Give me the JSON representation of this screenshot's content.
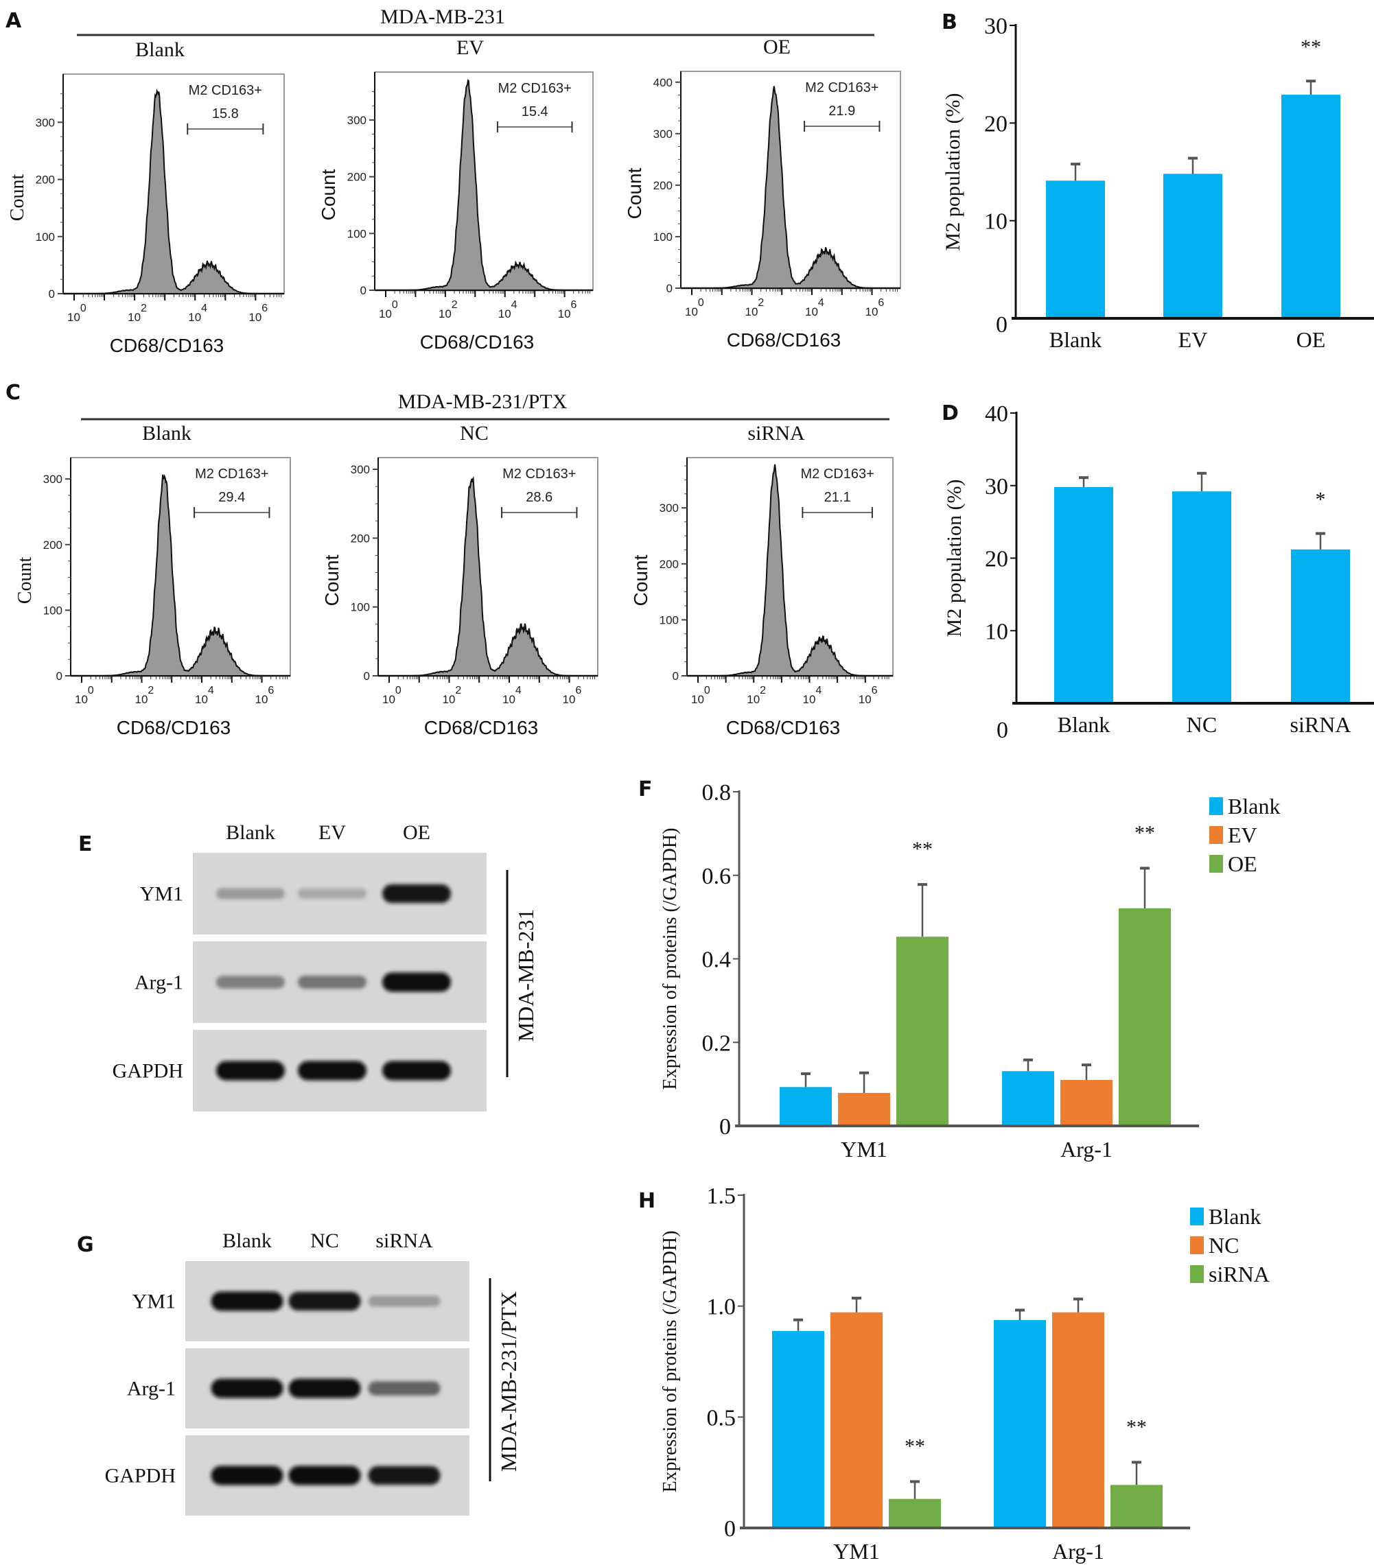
{
  "figure": {
    "panel_letters": [
      "A",
      "B",
      "C",
      "D",
      "E",
      "F",
      "G",
      "H"
    ]
  },
  "flow_groups": [
    {
      "letter": "A",
      "cell_line": "MDA-MB-231",
      "histograms": [
        {
          "title": "Blank",
          "gate_label": "M2 CD163+",
          "gate_value": "15.8",
          "y_ticks": [
            0,
            100,
            200,
            300
          ],
          "y_max": 370,
          "peak1": 355,
          "peak2": 52
        },
        {
          "title": "EV",
          "gate_label": "M2 CD163+",
          "gate_value": "15.4",
          "y_ticks": [
            0,
            100,
            200,
            300
          ],
          "y_max": 370,
          "peak1": 365,
          "peak2": 45
        },
        {
          "title": "OE",
          "gate_label": "M2 CD163+",
          "gate_value": "21.9",
          "y_ticks": [
            0,
            100,
            200,
            300,
            400
          ],
          "y_max": 405,
          "peak1": 385,
          "peak2": 72
        }
      ],
      "xlabel": "CD68/CD163",
      "ylabel": "Count",
      "x_ticks": [
        "10^0",
        "10^2",
        "10^4",
        "10^6"
      ]
    },
    {
      "letter": "C",
      "cell_line": "MDA-MB-231/PTX",
      "histograms": [
        {
          "title": "Blank",
          "gate_label": "M2 CD163+",
          "gate_value": "29.4",
          "y_ticks": [
            0,
            100,
            200,
            300
          ],
          "y_max": 320,
          "peak1": 305,
          "peak2": 68
        },
        {
          "title": "NC",
          "gate_label": "M2 CD163+",
          "gate_value": "28.6",
          "y_ticks": [
            0,
            100,
            200,
            300
          ],
          "y_max": 305,
          "peak1": 285,
          "peak2": 70
        },
        {
          "title": "siRNA",
          "gate_label": "M2 CD163+",
          "gate_value": "21.1",
          "y_ticks": [
            0,
            100,
            200,
            300
          ],
          "y_max": 375,
          "peak1": 370,
          "peak2": 65
        }
      ],
      "xlabel": "CD68/CD163",
      "ylabel": "Count",
      "x_ticks": [
        "10^0",
        "10^2",
        "10^4",
        "10^6"
      ]
    }
  ],
  "blots": [
    {
      "letter": "E",
      "lanes": [
        "Blank",
        "EV",
        "OE"
      ],
      "rows": [
        {
          "label": "YM1",
          "intensity": [
            0.25,
            0.18,
            0.95
          ]
        },
        {
          "label": "Arg-1",
          "intensity": [
            0.4,
            0.45,
            1.0
          ]
        },
        {
          "label": "GAPDH",
          "intensity": [
            1.0,
            1.0,
            1.0
          ]
        }
      ],
      "side_label": "MDA-MB-231"
    },
    {
      "letter": "G",
      "lanes": [
        "Blank",
        "NC",
        "siRNA"
      ],
      "rows": [
        {
          "label": "YM1",
          "intensity": [
            1.0,
            0.95,
            0.25
          ]
        },
        {
          "label": "Arg-1",
          "intensity": [
            1.0,
            1.0,
            0.55
          ]
        },
        {
          "label": "GAPDH",
          "intensity": [
            1.0,
            1.0,
            0.95
          ]
        }
      ],
      "side_label": "MDA-MB-231/PTX"
    }
  ],
  "chart_data": [
    {
      "panel": "B",
      "type": "bar",
      "title": "",
      "xlabel": "",
      "ylabel": "M2 population (%)",
      "categories": [
        "Blank",
        "EV",
        "OE"
      ],
      "values": [
        14.1,
        14.8,
        22.9
      ],
      "errors": [
        1.7,
        1.6,
        1.4
      ],
      "significance": [
        "",
        "",
        "**"
      ],
      "ylim": [
        0,
        30
      ],
      "y_ticks": [
        0,
        10,
        20,
        30
      ],
      "color": "#00b0ef",
      "grid": false
    },
    {
      "panel": "D",
      "type": "bar",
      "title": "",
      "xlabel": "",
      "ylabel": "M2 population (%)",
      "categories": [
        "Blank",
        "NC",
        "siRNA"
      ],
      "values": [
        29.8,
        29.2,
        21.2
      ],
      "errors": [
        1.3,
        2.5,
        2.2
      ],
      "significance": [
        "",
        "",
        "*"
      ],
      "ylim": [
        0,
        40
      ],
      "y_ticks": [
        0,
        10,
        20,
        30,
        40
      ],
      "color": "#00b0ef",
      "grid": false
    },
    {
      "panel": "F",
      "type": "bar",
      "title": "",
      "xlabel": "",
      "ylabel": "Expression of proteins (/GAPDH)",
      "categories": [
        "YM1",
        "Arg-1"
      ],
      "series": [
        {
          "name": "Blank",
          "color": "#00b0ef",
          "values": [
            0.093,
            0.131
          ],
          "errors": [
            0.032,
            0.027
          ],
          "significance": [
            "",
            ""
          ]
        },
        {
          "name": "EV",
          "color": "#ed7d31",
          "values": [
            0.079,
            0.11
          ],
          "errors": [
            0.048,
            0.036
          ],
          "significance": [
            "",
            ""
          ]
        },
        {
          "name": "OE",
          "color": "#70ad47",
          "values": [
            0.453,
            0.521
          ],
          "errors": [
            0.125,
            0.096
          ],
          "significance": [
            "**",
            "**"
          ]
        }
      ],
      "ylim": [
        0,
        0.8
      ],
      "y_ticks": [
        "0",
        "0.2",
        "0.4",
        "0.6",
        "0.8"
      ],
      "legend": "top-right",
      "grid": false
    },
    {
      "panel": "H",
      "type": "bar",
      "title": "",
      "xlabel": "",
      "ylabel": "Expression of proteins (/GAPDH)",
      "categories": [
        "YM1",
        "Arg-1"
      ],
      "series": [
        {
          "name": "Blank",
          "color": "#00b0ef",
          "values": [
            0.888,
            0.937
          ],
          "errors": [
            0.05,
            0.045
          ],
          "significance": [
            "",
            ""
          ]
        },
        {
          "name": "NC",
          "color": "#ed7d31",
          "values": [
            0.972,
            0.972
          ],
          "errors": [
            0.064,
            0.06
          ],
          "significance": [
            "",
            ""
          ]
        },
        {
          "name": "siRNA",
          "color": "#70ad47",
          "values": [
            0.131,
            0.194
          ],
          "errors": [
            0.078,
            0.102
          ],
          "significance": [
            "**",
            "**"
          ]
        }
      ],
      "ylim": [
        0,
        1.5
      ],
      "y_ticks": [
        "0",
        "0.5",
        "1.0",
        "1.5"
      ],
      "legend": "top-right",
      "grid": false
    }
  ]
}
